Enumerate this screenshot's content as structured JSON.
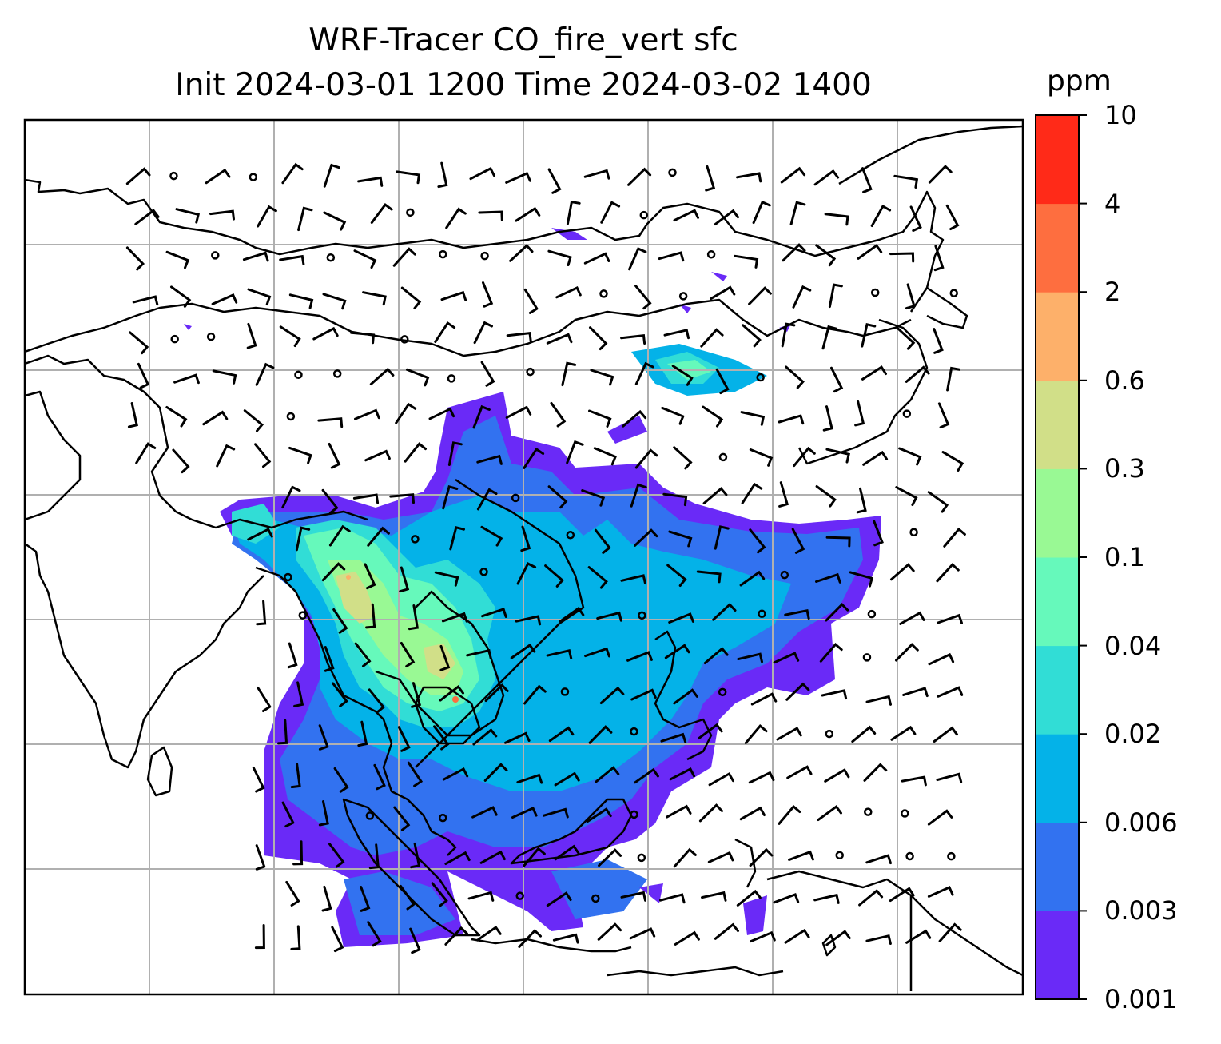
{
  "title": {
    "line1": "WRF-Tracer CO_fire_vert sfc",
    "line2": "Init 2024-03-01 1200 Time 2024-03-02 1400"
  },
  "colorbar": {
    "unit": "ppm",
    "levels": [
      "0.001",
      "0.003",
      "0.006",
      "0.02",
      "0.04",
      "0.1",
      "0.3",
      "0.6",
      "2",
      "4",
      "10"
    ],
    "colors": [
      "#6a2af7",
      "#3272f0",
      "#04b2e8",
      "#31ddd6",
      "#66f9bb",
      "#99f994",
      "#d1df88",
      "#fdb06a",
      "#fe6e3f",
      "#ff2a18"
    ]
  },
  "map": {
    "gridlines": true,
    "grid_color": "#b0b0b0",
    "coastline_color": "#000000",
    "wind_barb_color": "#000000"
  }
}
